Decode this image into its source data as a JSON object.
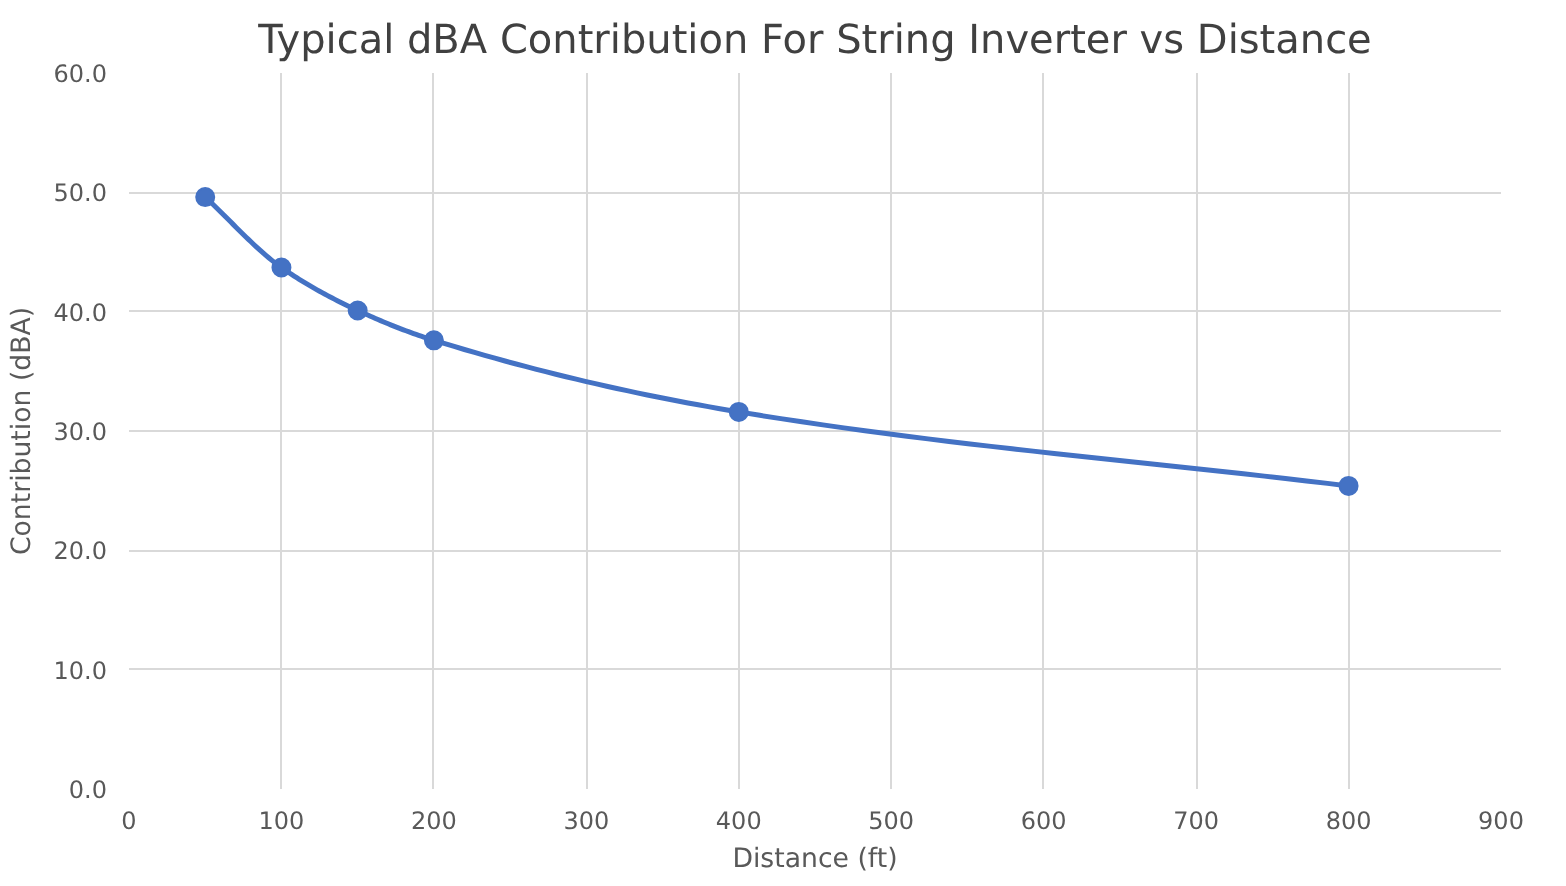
{
  "chart_data": {
    "type": "line",
    "title": "Typical dBA Contribution For String Inverter vs Distance",
    "xlabel": "Distance (ft)",
    "ylabel": "Contribution (dBA)",
    "x": [
      50,
      100,
      150,
      200,
      400,
      800
    ],
    "series": [
      {
        "color": "#4472c4",
        "values": [
          49.6,
          43.7,
          40.1,
          37.6,
          31.6,
          25.4
        ]
      }
    ],
    "xlim": [
      0,
      900
    ],
    "xticks": [
      0,
      100,
      200,
      300,
      400,
      500,
      600,
      700,
      800,
      900
    ],
    "ylim": [
      0,
      60
    ],
    "yticks": [
      {
        "value": 0,
        "label": "0.0"
      },
      {
        "value": 10,
        "label": "10.0"
      },
      {
        "value": 20,
        "label": "20.0"
      },
      {
        "value": 30,
        "label": "30.0"
      },
      {
        "value": 40,
        "label": "40.0"
      },
      {
        "value": 50,
        "label": "50.0"
      },
      {
        "value": 60,
        "label": "60.0"
      }
    ],
    "grid": true,
    "marker": "circle",
    "line_style": "solid"
  }
}
